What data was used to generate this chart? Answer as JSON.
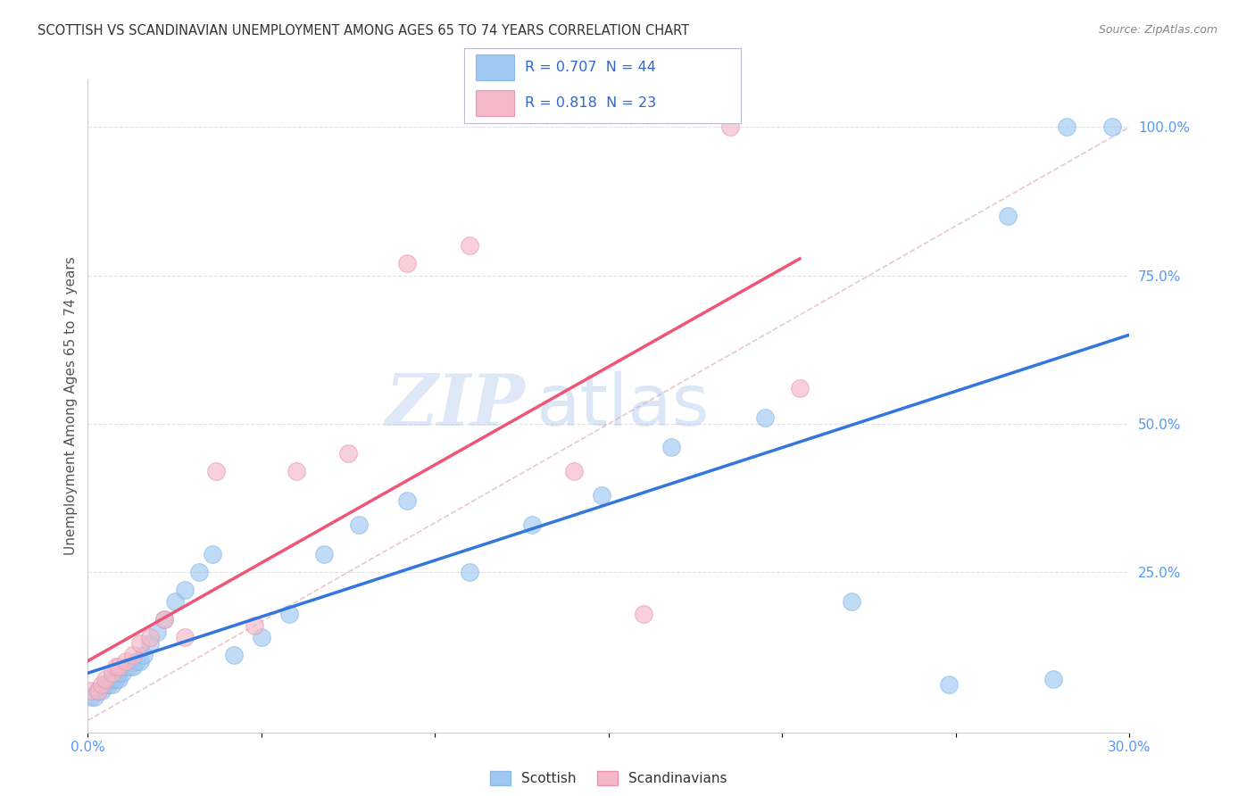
{
  "title": "SCOTTISH VS SCANDINAVIAN UNEMPLOYMENT AMONG AGES 65 TO 74 YEARS CORRELATION CHART",
  "source": "Source: ZipAtlas.com",
  "ylabel": "Unemployment Among Ages 65 to 74 years",
  "xlim": [
    0.0,
    0.3
  ],
  "ylim": [
    -0.02,
    1.08
  ],
  "xticks": [
    0.0,
    0.05,
    0.1,
    0.15,
    0.2,
    0.25,
    0.3
  ],
  "xticklabels": [
    "0.0%",
    "",
    "",
    "",
    "",
    "",
    "30.0%"
  ],
  "yticks": [
    0.25,
    0.5,
    0.75,
    1.0
  ],
  "yticklabels": [
    "25.0%",
    "50.0%",
    "75.0%",
    "100.0%"
  ],
  "scottish_color": "#9ec8f0",
  "scandinavian_color": "#f5b8c8",
  "scottish_R": 0.707,
  "scottish_N": 44,
  "scandinavian_R": 0.818,
  "scandinavian_N": 23,
  "scottish_x": [
    0.001,
    0.002,
    0.003,
    0.003,
    0.004,
    0.005,
    0.005,
    0.006,
    0.007,
    0.007,
    0.008,
    0.009,
    0.009,
    0.01,
    0.011,
    0.012,
    0.013,
    0.014,
    0.015,
    0.016,
    0.018,
    0.02,
    0.022,
    0.025,
    0.028,
    0.032,
    0.036,
    0.042,
    0.05,
    0.058,
    0.068,
    0.078,
    0.092,
    0.11,
    0.128,
    0.148,
    0.168,
    0.195,
    0.22,
    0.248,
    0.265,
    0.278,
    0.282,
    0.295
  ],
  "scottish_y": [
    0.04,
    0.04,
    0.05,
    0.05,
    0.05,
    0.06,
    0.06,
    0.06,
    0.06,
    0.07,
    0.07,
    0.07,
    0.08,
    0.08,
    0.09,
    0.09,
    0.09,
    0.1,
    0.1,
    0.11,
    0.13,
    0.15,
    0.17,
    0.2,
    0.22,
    0.25,
    0.28,
    0.11,
    0.14,
    0.18,
    0.28,
    0.33,
    0.37,
    0.25,
    0.33,
    0.38,
    0.46,
    0.51,
    0.2,
    0.06,
    0.85,
    0.07,
    1.0,
    1.0
  ],
  "scandinavian_x": [
    0.001,
    0.003,
    0.004,
    0.005,
    0.007,
    0.008,
    0.009,
    0.011,
    0.013,
    0.015,
    0.018,
    0.022,
    0.028,
    0.037,
    0.048,
    0.06,
    0.075,
    0.092,
    0.11,
    0.14,
    0.16,
    0.185,
    0.205
  ],
  "scandinavian_y": [
    0.05,
    0.05,
    0.06,
    0.07,
    0.08,
    0.09,
    0.09,
    0.1,
    0.11,
    0.13,
    0.14,
    0.17,
    0.14,
    0.42,
    0.16,
    0.42,
    0.45,
    0.77,
    0.8,
    0.42,
    0.18,
    1.0,
    0.56
  ],
  "watermark_zip": "ZIP",
  "watermark_atlas": "atlas",
  "background_color": "#ffffff",
  "grid_color": "#e0e0e8",
  "axis_color": "#cccccc",
  "tick_color": "#5599ff",
  "title_color": "#333333",
  "legend_text_color": "#3366cc",
  "scottish_line_color": "#3377dd",
  "scandinavian_line_color": "#ee5577",
  "diagonal_color": "#ddcccc"
}
